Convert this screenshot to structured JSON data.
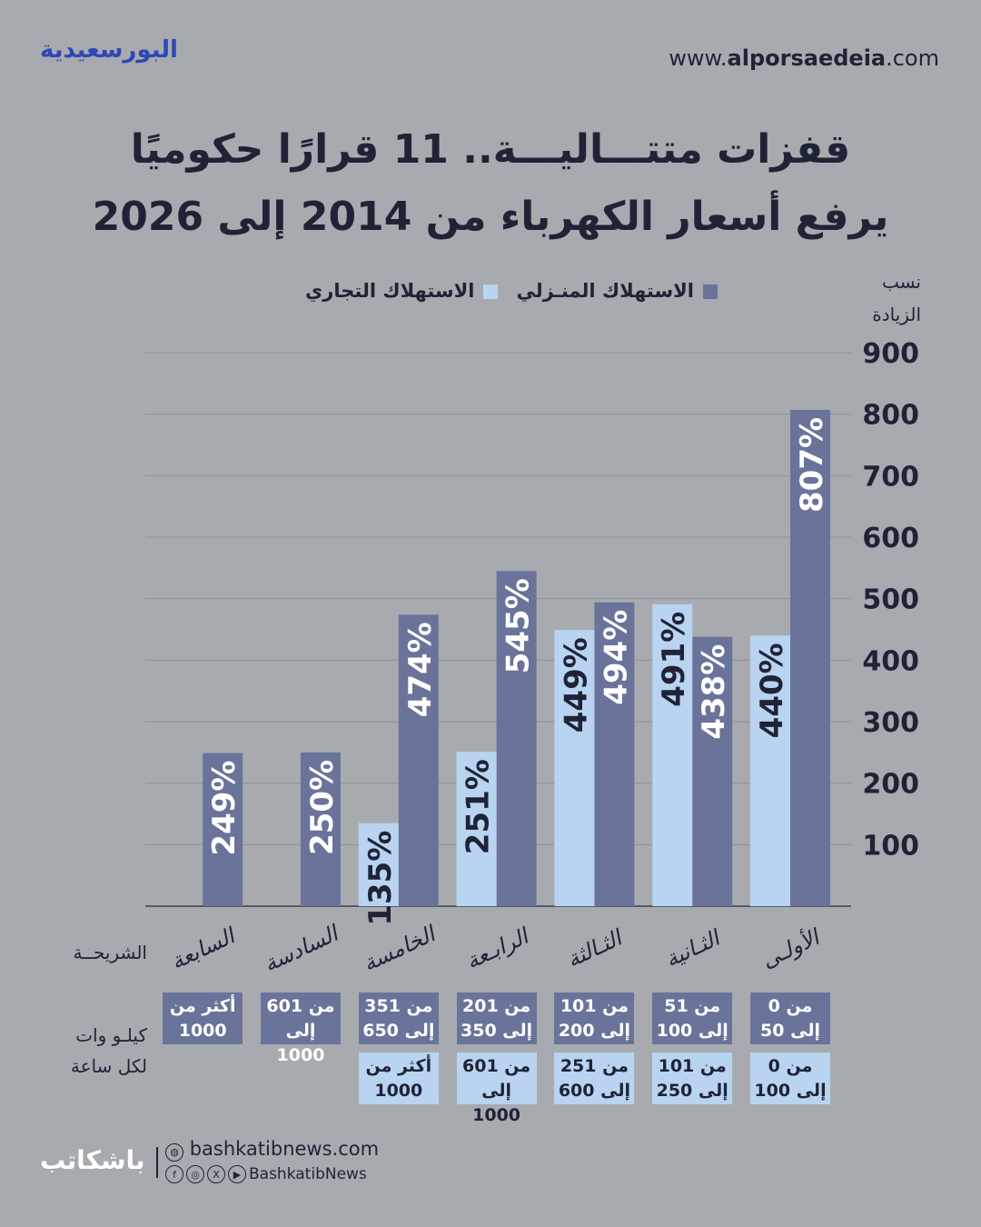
{
  "header": {
    "brand": "البورسعيدية",
    "site_prefix": "www.",
    "site_bold": "alporsaedeia",
    "site_suffix": ".com",
    "title_line1": "قفزات متتـــاليـــة.. 11 قرارًا حكوميًا",
    "title_line2": "يرفع أسعار الكهرباء من 2014 إلى 2026"
  },
  "colors": {
    "household": "#6a7399",
    "commercial": "#b8d4f0",
    "background": "#a7abaf",
    "text": "#1f2336"
  },
  "row_labels": {
    "tier": "الشريحــة",
    "kwh_line1": "كيلـو وات",
    "kwh_line2": "لكل ساعة"
  },
  "chart_data": {
    "type": "bar",
    "title": "",
    "ylabel": "نسب الزيادة",
    "ylim": [
      0,
      900
    ],
    "yticks": [
      100,
      200,
      300,
      400,
      500,
      600,
      700,
      800,
      900
    ],
    "grid": true,
    "legend_position": "top",
    "categories": [
      "الأولـى",
      "الثـانية",
      "الثـالثة",
      "الرابـعة",
      "الخامسة",
      "السادسة",
      "السابعة"
    ],
    "series": [
      {
        "name": "الاستهلاك المنـزلي",
        "values": [
          807,
          438,
          494,
          545,
          474,
          250,
          249
        ],
        "labels": [
          "807%",
          "438%",
          "494%",
          "545%",
          "474%",
          "250%",
          "249%"
        ]
      },
      {
        "name": "الاستهلاك التجاري",
        "values": [
          440,
          491,
          449,
          251,
          135,
          null,
          null
        ],
        "labels": [
          "440%",
          "491%",
          "449%",
          "251%",
          "135%",
          "",
          ""
        ]
      }
    ],
    "household_ranges": [
      [
        "من 0",
        "إلى 50"
      ],
      [
        "من 51",
        "إلى 100"
      ],
      [
        "من 101",
        "إلى 200"
      ],
      [
        "من 201",
        "إلى 350"
      ],
      [
        "من 351",
        "إلى 650"
      ],
      [
        "من 601",
        "إلى 1000"
      ],
      [
        "أكثر من",
        "1000"
      ]
    ],
    "commercial_ranges": [
      [
        "من 0",
        "إلى 100"
      ],
      [
        "من 101",
        "إلى 250"
      ],
      [
        "من 251",
        "إلى 600"
      ],
      [
        "من 601",
        "إلى 1000"
      ],
      [
        "أكثر من",
        "1000"
      ],
      null,
      null
    ]
  },
  "footer": {
    "logo": "باشكاتب",
    "website": "bashkatibnews.com",
    "handle": "BashkatibNews",
    "icons": [
      "globe-icon",
      "facebook-icon",
      "instagram-icon",
      "x-icon",
      "youtube-icon"
    ]
  }
}
